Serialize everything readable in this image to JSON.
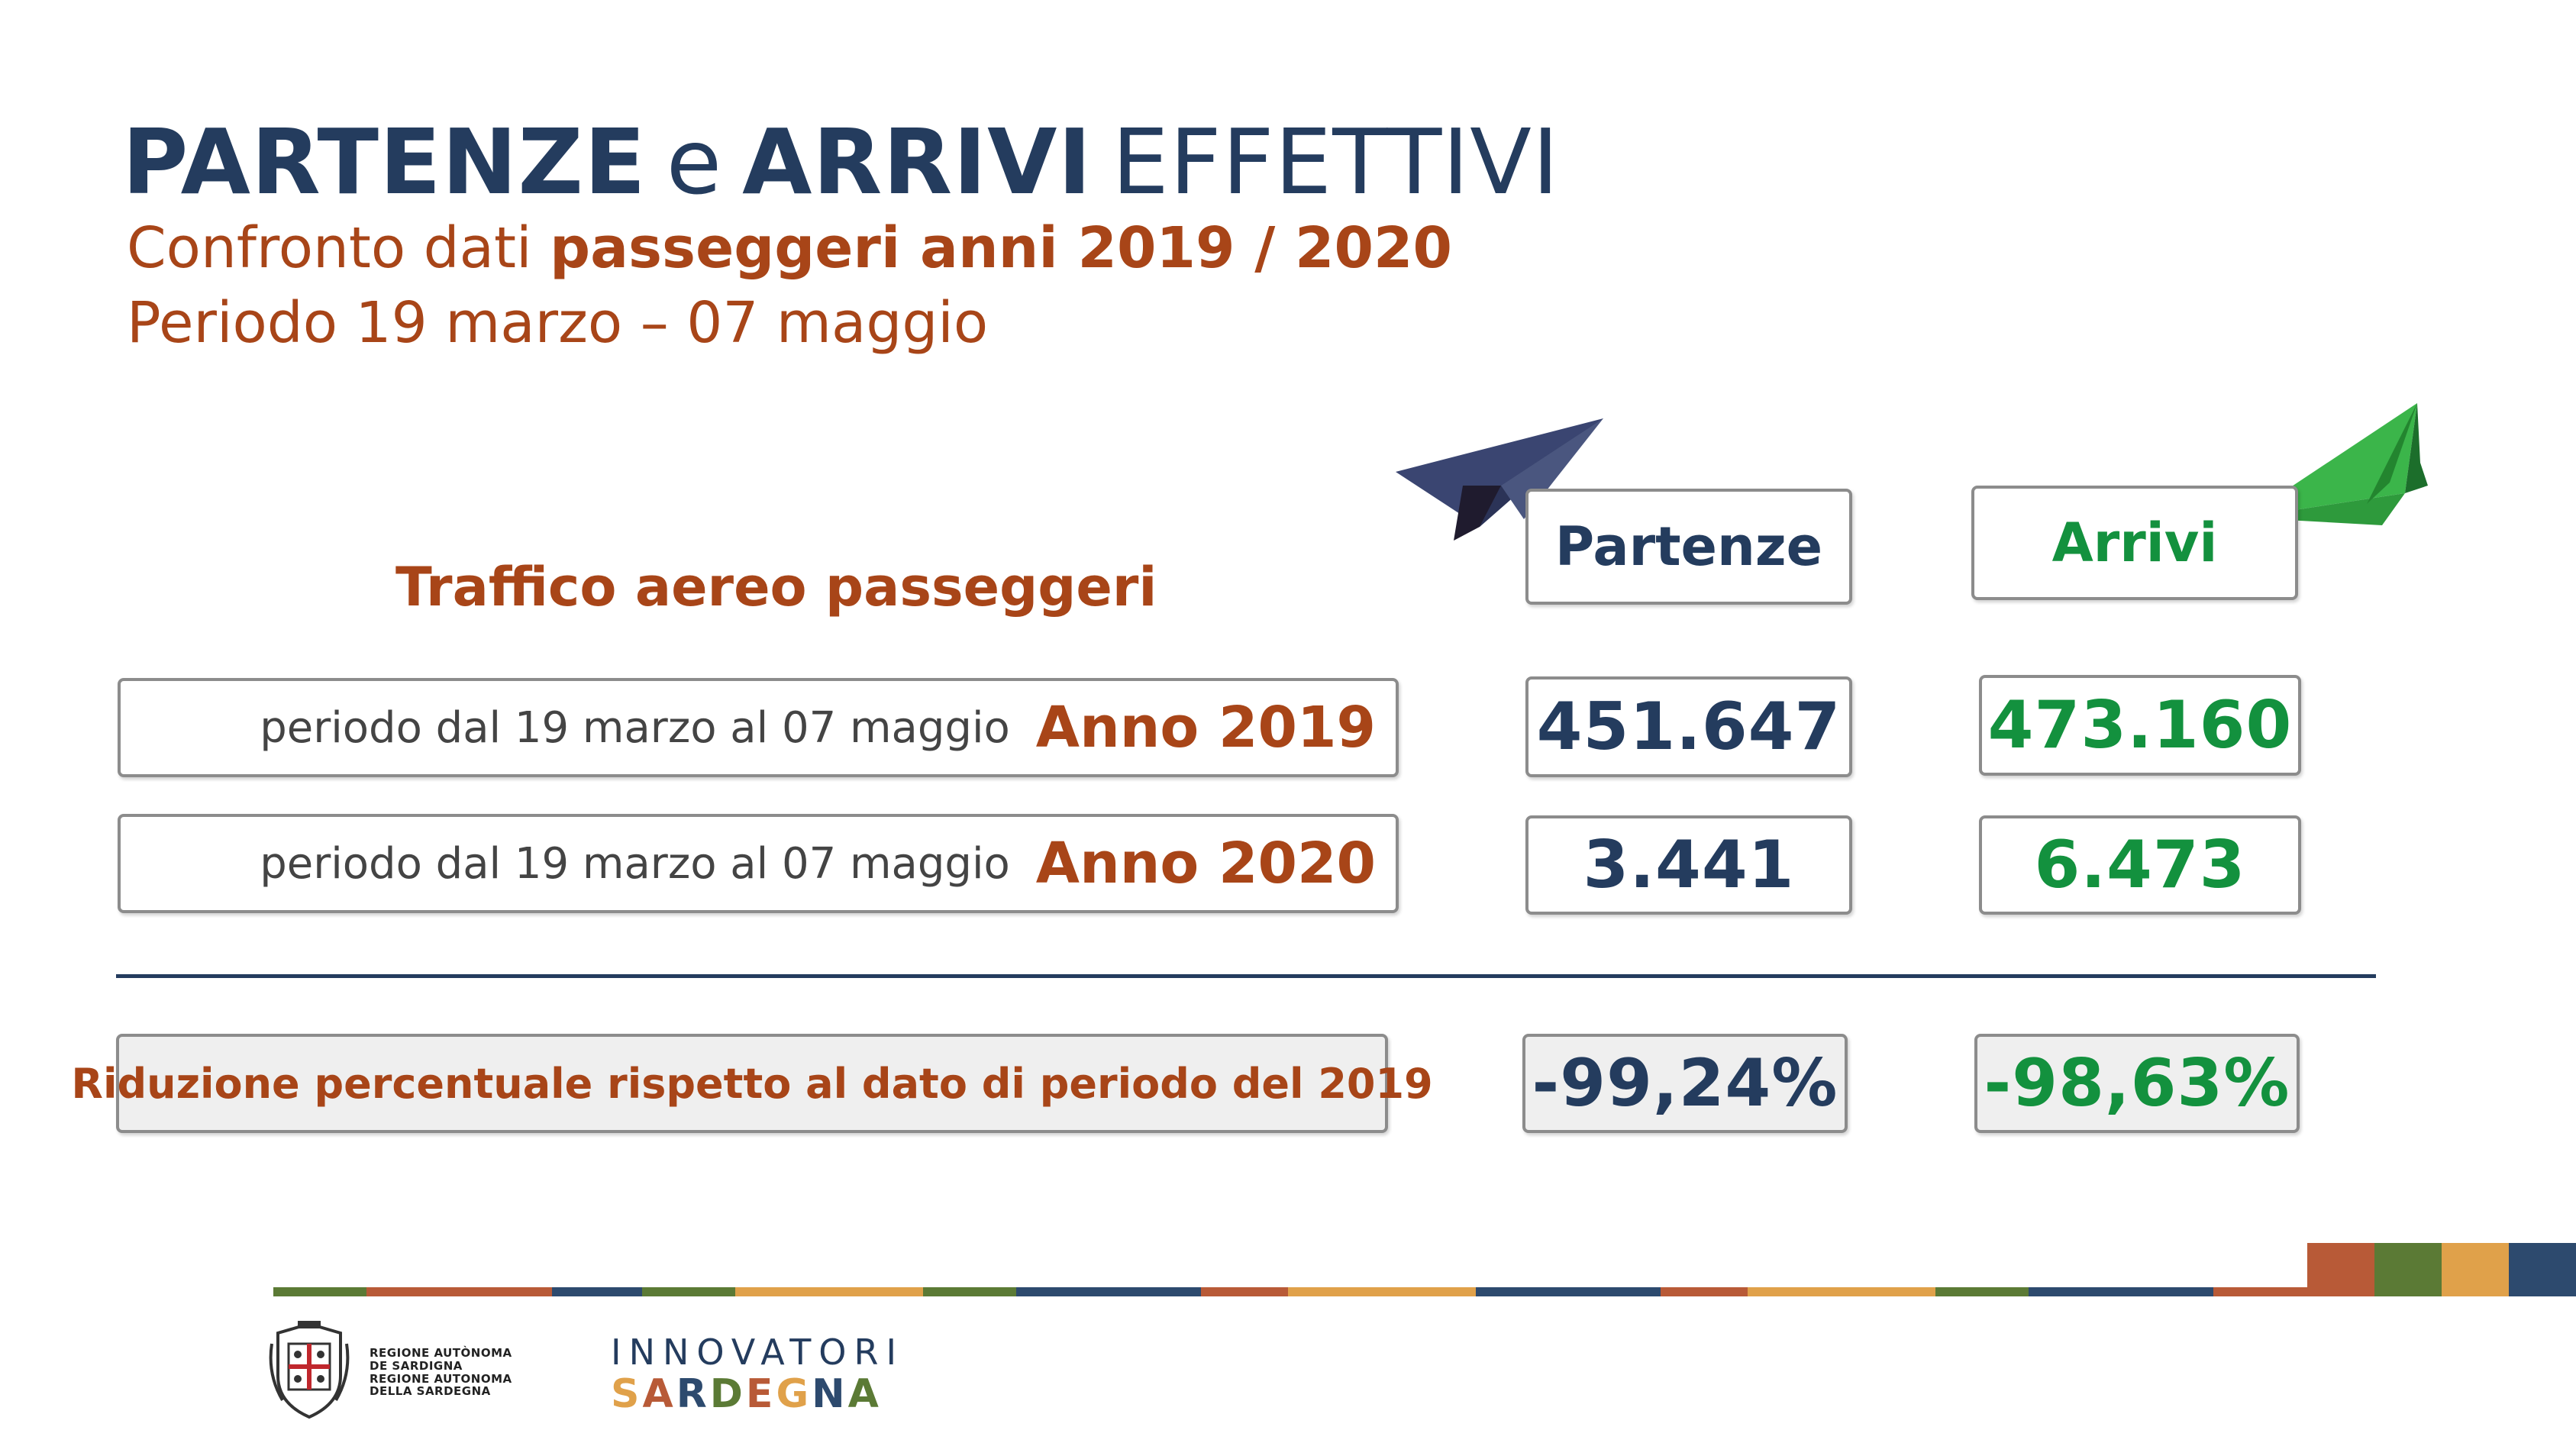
{
  "colors": {
    "title_blue": "#243c5e",
    "accent_orange": "#a84518",
    "green": "#13913e",
    "border_grey": "#8c8c8c",
    "stripe": [
      "#5b7a35",
      "#b85a37",
      "#2d4a6e",
      "#5b7a35",
      "#e0a14a",
      "#5b7a35",
      "#2d4a6e",
      "#b85a37",
      "#e0a14a",
      "#2d4a6e",
      "#b85a37",
      "#e0a14a",
      "#5b7a35",
      "#2d4a6e",
      "#b85a37"
    ]
  },
  "title": {
    "part1": "PARTENZE",
    "part2": "e",
    "part3": "ARRIVI",
    "part4": "EFFETTIVI"
  },
  "subtitle": {
    "line1_regular": "Confronto dati",
    "line1_bold": "passeggeri anni 2019 / 2020",
    "line2": "Periodo 19 marzo – 07 maggio"
  },
  "section_heading": "Traffico aereo passeggeri",
  "columns": {
    "departures": "Partenze",
    "arrivals": "Arrivi"
  },
  "rows": [
    {
      "period": "periodo dal 19 marzo al 07 maggio",
      "year": "Anno 2019",
      "departures": "451.647",
      "arrivals": "473.160"
    },
    {
      "period": "periodo dal 19 marzo al 07 maggio",
      "year": "Anno 2020",
      "departures": "3.441",
      "arrivals": "6.473"
    }
  ],
  "reduction": {
    "label": "Riduzione percentuale rispetto al dato di periodo del 2019",
    "departures": "-99,24%",
    "arrivals": "-98,63%"
  },
  "footer": {
    "region_lines": [
      "REGIONE AUTÒNOMA",
      "DE SARDIGNA",
      "REGIONE AUTONOMA",
      "DELLA SARDEGNA"
    ],
    "innovatori": "INNOVATORI",
    "sardegna_letters": [
      {
        "ch": "S",
        "color": "#e0a14a"
      },
      {
        "ch": "A",
        "color": "#b85a37"
      },
      {
        "ch": "R",
        "color": "#2d4a6e"
      },
      {
        "ch": "D",
        "color": "#5b7a35"
      },
      {
        "ch": "E",
        "color": "#b85a37"
      },
      {
        "ch": "G",
        "color": "#e0a14a"
      },
      {
        "ch": "N",
        "color": "#2d4a6e"
      },
      {
        "ch": "A",
        "color": "#5b7a35"
      }
    ]
  }
}
